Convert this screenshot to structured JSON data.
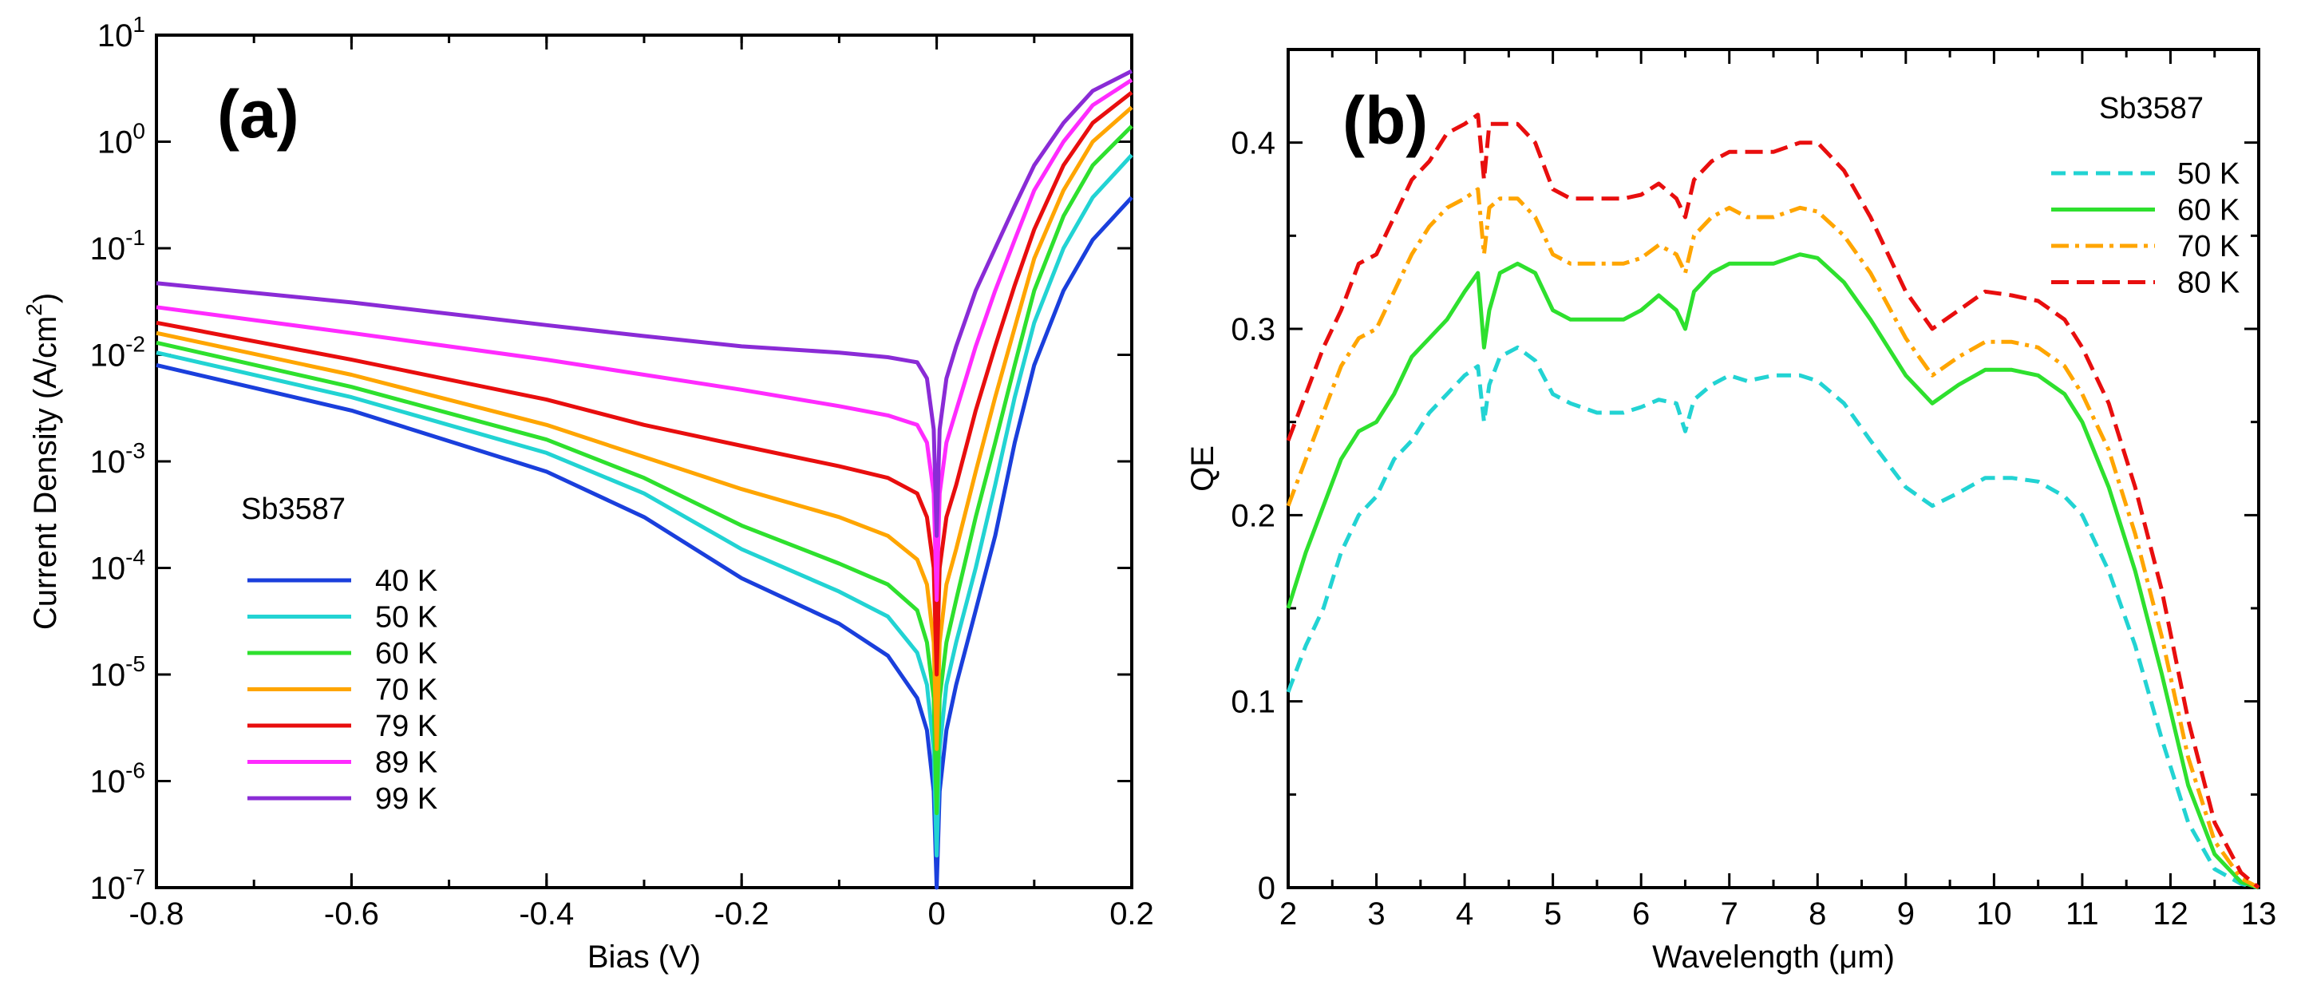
{
  "chart_data": [
    {
      "type": "line",
      "panel_label": "(a)",
      "xlabel": "Bias (V)",
      "ylabel": "Current Density (A/cm",
      "ylabel_sup": "2",
      "ylabel_close": ")",
      "y_scale": "log",
      "xlim": [
        -0.8,
        0.2
      ],
      "ylim": [
        1e-07,
        10
      ],
      "x_ticks": [
        -0.8,
        -0.6,
        -0.4,
        -0.2,
        0,
        0.2
      ],
      "x_tick_labels": [
        "-0.8",
        "-0.6",
        "-0.4",
        "-0.2",
        "0",
        "0.2"
      ],
      "y_ticks": [
        {
          "base": "10",
          "exp": "-7"
        },
        {
          "base": "10",
          "exp": "-6"
        },
        {
          "base": "10",
          "exp": "-5"
        },
        {
          "base": "10",
          "exp": "-4"
        },
        {
          "base": "10",
          "exp": "-3"
        },
        {
          "base": "10",
          "exp": "-2"
        },
        {
          "base": "10",
          "exp": "-1"
        },
        {
          "base": "10",
          "exp": "0"
        },
        {
          "base": "10",
          "exp": "1"
        }
      ],
      "legend_title": "Sb3587",
      "legend_position": "lower-left",
      "series": [
        {
          "name": "40 K",
          "color": "#1a3fdc",
          "dash": "solid",
          "x": [
            -0.8,
            -0.6,
            -0.4,
            -0.3,
            -0.2,
            -0.1,
            -0.05,
            -0.02,
            -0.01,
            -0.003,
            0,
            0.003,
            0.01,
            0.02,
            0.04,
            0.06,
            0.08,
            0.1,
            0.13,
            0.16,
            0.2
          ],
          "y": [
            0.008,
            0.003,
            0.0008,
            0.0003,
            8e-05,
            3e-05,
            1.5e-05,
            6e-06,
            3e-06,
            8e-07,
            1e-07,
            8e-07,
            3e-06,
            8e-06,
            4e-05,
            0.0002,
            0.0015,
            0.008,
            0.04,
            0.12,
            0.3
          ]
        },
        {
          "name": "50 K",
          "color": "#22d3d3",
          "dash": "solid",
          "x": [
            -0.8,
            -0.6,
            -0.4,
            -0.3,
            -0.2,
            -0.1,
            -0.05,
            -0.02,
            -0.01,
            -0.003,
            0,
            0.003,
            0.01,
            0.02,
            0.04,
            0.06,
            0.08,
            0.1,
            0.13,
            0.16,
            0.2
          ],
          "y": [
            0.0105,
            0.004,
            0.0012,
            0.0005,
            0.00015,
            6e-05,
            3.5e-05,
            1.6e-05,
            8e-06,
            2e-06,
            2e-07,
            2e-06,
            8e-06,
            2e-05,
            0.0001,
            0.0006,
            0.004,
            0.02,
            0.1,
            0.3,
            0.75
          ]
        },
        {
          "name": "60 K",
          "color": "#2ee02e",
          "dash": "solid",
          "x": [
            -0.8,
            -0.6,
            -0.4,
            -0.3,
            -0.2,
            -0.1,
            -0.05,
            -0.02,
            -0.01,
            -0.003,
            0,
            0.003,
            0.01,
            0.02,
            0.04,
            0.06,
            0.08,
            0.1,
            0.13,
            0.16,
            0.2
          ],
          "y": [
            0.013,
            0.005,
            0.0016,
            0.0007,
            0.00025,
            0.00011,
            7e-05,
            4e-05,
            2e-05,
            6e-06,
            5e-07,
            6e-06,
            2e-05,
            5e-05,
            0.0003,
            0.0015,
            0.008,
            0.04,
            0.2,
            0.6,
            1.4
          ]
        },
        {
          "name": "70 K",
          "color": "#ffa500",
          "dash": "solid",
          "x": [
            -0.8,
            -0.6,
            -0.4,
            -0.3,
            -0.2,
            -0.1,
            -0.05,
            -0.02,
            -0.01,
            -0.003,
            0,
            0.003,
            0.01,
            0.02,
            0.04,
            0.06,
            0.08,
            0.1,
            0.13,
            0.16,
            0.2
          ],
          "y": [
            0.016,
            0.0065,
            0.0022,
            0.0011,
            0.00055,
            0.0003,
            0.0002,
            0.00012,
            7e-05,
            2e-05,
            2e-06,
            2e-05,
            7e-05,
            0.00015,
            0.0008,
            0.004,
            0.018,
            0.08,
            0.35,
            1.0,
            2.1
          ]
        },
        {
          "name": "79 K",
          "color": "#e80e0e",
          "dash": "solid",
          "x": [
            -0.8,
            -0.6,
            -0.4,
            -0.3,
            -0.2,
            -0.1,
            -0.05,
            -0.02,
            -0.01,
            -0.003,
            0,
            0.003,
            0.01,
            0.02,
            0.04,
            0.06,
            0.08,
            0.1,
            0.13,
            0.16,
            0.2
          ],
          "y": [
            0.02,
            0.009,
            0.0038,
            0.0022,
            0.0014,
            0.0009,
            0.0007,
            0.0005,
            0.0003,
            0.0001,
            1e-05,
            0.0001,
            0.0003,
            0.0006,
            0.003,
            0.012,
            0.045,
            0.15,
            0.6,
            1.5,
            2.9
          ]
        },
        {
          "name": "89 K",
          "color": "#ff2bff",
          "dash": "solid",
          "x": [
            -0.8,
            -0.6,
            -0.4,
            -0.3,
            -0.2,
            -0.1,
            -0.05,
            -0.02,
            -0.01,
            -0.003,
            0,
            0.003,
            0.01,
            0.02,
            0.04,
            0.06,
            0.08,
            0.1,
            0.13,
            0.16,
            0.2
          ],
          "y": [
            0.028,
            0.016,
            0.009,
            0.0065,
            0.0047,
            0.0033,
            0.0027,
            0.0022,
            0.0015,
            0.0005,
            5e-05,
            0.0005,
            0.0015,
            0.003,
            0.012,
            0.04,
            0.12,
            0.35,
            1.0,
            2.2,
            3.8
          ]
        },
        {
          "name": "99 K",
          "color": "#8a2bd6",
          "dash": "solid",
          "x": [
            -0.8,
            -0.6,
            -0.4,
            -0.3,
            -0.2,
            -0.1,
            -0.05,
            -0.02,
            -0.01,
            -0.003,
            0,
            0.003,
            0.01,
            0.02,
            0.04,
            0.06,
            0.08,
            0.1,
            0.13,
            0.16,
            0.2
          ],
          "y": [
            0.047,
            0.031,
            0.019,
            0.015,
            0.012,
            0.0105,
            0.0095,
            0.0085,
            0.006,
            0.002,
            0.0002,
            0.002,
            0.006,
            0.012,
            0.04,
            0.1,
            0.25,
            0.6,
            1.5,
            3.0,
            4.6
          ]
        }
      ]
    },
    {
      "type": "line",
      "panel_label": "(b)",
      "xlabel": "Wavelength (",
      "xlabel_mu": "μ",
      "xlabel_tail": "m)",
      "ylabel": "QE",
      "xlim": [
        2,
        13
      ],
      "ylim": [
        0,
        0.45
      ],
      "x_ticks": [
        2,
        3,
        4,
        5,
        6,
        7,
        8,
        9,
        10,
        11,
        12,
        13
      ],
      "x_tick_labels": [
        "2",
        "3",
        "4",
        "5",
        "6",
        "7",
        "8",
        "9",
        "10",
        "11",
        "12",
        "13"
      ],
      "y_ticks": [
        0,
        0.1,
        0.2,
        0.3,
        0.4
      ],
      "y_tick_labels": [
        "0",
        "0.1",
        "0.2",
        "0.3",
        "0.4"
      ],
      "legend_title": "Sb3587",
      "legend_position": "top-right",
      "series": [
        {
          "name": "50 K",
          "color": "#22d3d3",
          "dash": "18,10",
          "x": [
            2.0,
            2.2,
            2.4,
            2.6,
            2.8,
            3.0,
            3.2,
            3.4,
            3.6,
            3.8,
            4.0,
            4.15,
            4.22,
            4.28,
            4.4,
            4.6,
            4.8,
            5.0,
            5.2,
            5.5,
            5.8,
            6.0,
            6.2,
            6.4,
            6.5,
            6.6,
            6.8,
            7.0,
            7.2,
            7.5,
            7.8,
            8.0,
            8.3,
            8.6,
            9.0,
            9.3,
            9.6,
            9.9,
            10.2,
            10.5,
            10.8,
            11.0,
            11.3,
            11.6,
            11.9,
            12.2,
            12.5,
            12.8,
            13.0
          ],
          "y": [
            0.105,
            0.13,
            0.15,
            0.18,
            0.2,
            0.21,
            0.23,
            0.24,
            0.255,
            0.265,
            0.275,
            0.28,
            0.25,
            0.27,
            0.285,
            0.29,
            0.283,
            0.265,
            0.26,
            0.255,
            0.255,
            0.258,
            0.262,
            0.26,
            0.245,
            0.262,
            0.27,
            0.275,
            0.272,
            0.275,
            0.275,
            0.272,
            0.26,
            0.24,
            0.215,
            0.205,
            0.212,
            0.22,
            0.22,
            0.218,
            0.21,
            0.2,
            0.17,
            0.13,
            0.08,
            0.035,
            0.01,
            0.002,
            0.0
          ]
        },
        {
          "name": "60 K",
          "color": "#2ee02e",
          "dash": "solid",
          "x": [
            2.0,
            2.2,
            2.4,
            2.6,
            2.8,
            3.0,
            3.2,
            3.4,
            3.6,
            3.8,
            4.0,
            4.15,
            4.22,
            4.28,
            4.4,
            4.6,
            4.8,
            5.0,
            5.2,
            5.5,
            5.8,
            6.0,
            6.2,
            6.4,
            6.5,
            6.6,
            6.8,
            7.0,
            7.2,
            7.5,
            7.8,
            8.0,
            8.3,
            8.6,
            9.0,
            9.3,
            9.6,
            9.9,
            10.2,
            10.5,
            10.8,
            11.0,
            11.3,
            11.6,
            11.9,
            12.2,
            12.5,
            12.8,
            13.0
          ],
          "y": [
            0.15,
            0.18,
            0.205,
            0.23,
            0.245,
            0.25,
            0.265,
            0.285,
            0.295,
            0.305,
            0.32,
            0.33,
            0.29,
            0.31,
            0.33,
            0.335,
            0.33,
            0.31,
            0.305,
            0.305,
            0.305,
            0.31,
            0.318,
            0.31,
            0.3,
            0.32,
            0.33,
            0.335,
            0.335,
            0.335,
            0.34,
            0.338,
            0.325,
            0.305,
            0.275,
            0.26,
            0.27,
            0.278,
            0.278,
            0.275,
            0.265,
            0.25,
            0.215,
            0.17,
            0.115,
            0.055,
            0.018,
            0.003,
            0.0
          ]
        },
        {
          "name": "70 K",
          "color": "#ffa500",
          "dash": "22,8,5,8",
          "x": [
            2.0,
            2.2,
            2.4,
            2.6,
            2.8,
            3.0,
            3.2,
            3.4,
            3.6,
            3.8,
            4.0,
            4.15,
            4.22,
            4.28,
            4.4,
            4.6,
            4.8,
            5.0,
            5.2,
            5.5,
            5.8,
            6.0,
            6.2,
            6.4,
            6.5,
            6.6,
            6.8,
            7.0,
            7.2,
            7.5,
            7.8,
            8.0,
            8.3,
            8.6,
            9.0,
            9.3,
            9.6,
            9.9,
            10.2,
            10.5,
            10.8,
            11.0,
            11.3,
            11.6,
            11.9,
            12.2,
            12.5,
            12.8,
            13.0
          ],
          "y": [
            0.205,
            0.23,
            0.255,
            0.28,
            0.295,
            0.3,
            0.32,
            0.34,
            0.355,
            0.365,
            0.37,
            0.375,
            0.34,
            0.365,
            0.37,
            0.37,
            0.36,
            0.34,
            0.335,
            0.335,
            0.335,
            0.338,
            0.345,
            0.34,
            0.33,
            0.35,
            0.36,
            0.365,
            0.36,
            0.36,
            0.365,
            0.363,
            0.35,
            0.33,
            0.295,
            0.275,
            0.285,
            0.293,
            0.293,
            0.29,
            0.28,
            0.265,
            0.235,
            0.19,
            0.135,
            0.07,
            0.025,
            0.005,
            0.0
          ]
        },
        {
          "name": "80 K",
          "color": "#e80e0e",
          "dash": "22,10",
          "x": [
            2.0,
            2.2,
            2.4,
            2.6,
            2.8,
            3.0,
            3.2,
            3.4,
            3.6,
            3.8,
            4.0,
            4.15,
            4.22,
            4.28,
            4.4,
            4.6,
            4.8,
            5.0,
            5.2,
            5.5,
            5.8,
            6.0,
            6.2,
            6.4,
            6.5,
            6.6,
            6.8,
            7.0,
            7.2,
            7.5,
            7.8,
            8.0,
            8.3,
            8.6,
            9.0,
            9.3,
            9.6,
            9.9,
            10.2,
            10.5,
            10.8,
            11.0,
            11.3,
            11.6,
            11.9,
            12.2,
            12.5,
            12.8,
            13.0
          ],
          "y": [
            0.24,
            0.265,
            0.29,
            0.31,
            0.335,
            0.34,
            0.36,
            0.38,
            0.39,
            0.405,
            0.41,
            0.415,
            0.38,
            0.41,
            0.41,
            0.41,
            0.4,
            0.375,
            0.37,
            0.37,
            0.37,
            0.372,
            0.378,
            0.37,
            0.36,
            0.38,
            0.39,
            0.395,
            0.395,
            0.395,
            0.4,
            0.4,
            0.385,
            0.36,
            0.32,
            0.3,
            0.31,
            0.32,
            0.318,
            0.315,
            0.305,
            0.29,
            0.26,
            0.215,
            0.16,
            0.09,
            0.035,
            0.008,
            0.0
          ]
        }
      ]
    }
  ]
}
